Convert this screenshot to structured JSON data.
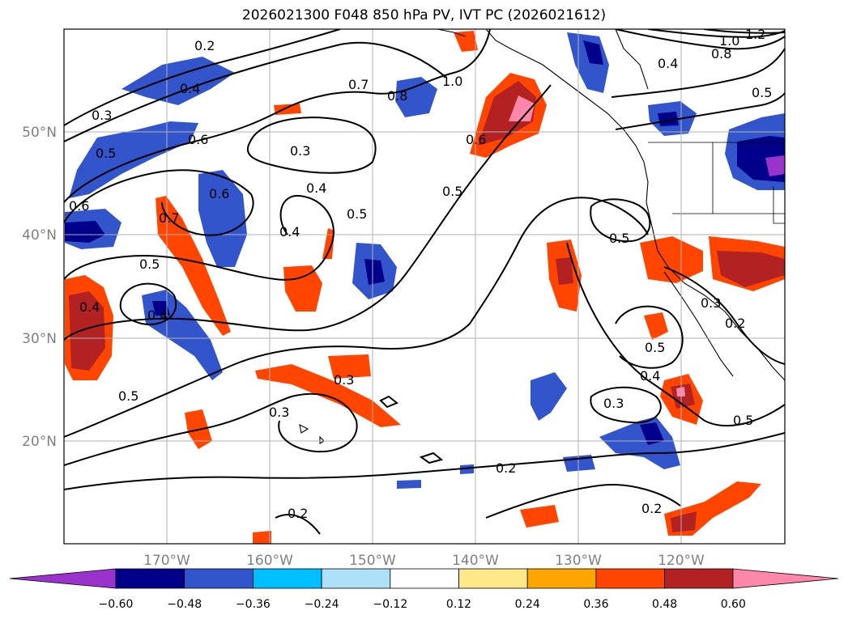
{
  "title": "2026021300 F048 850 hPa PV, IVT PC (2026021612)",
  "axes": {
    "lon_ticks": [
      "170°W",
      "160°W",
      "150°W",
      "140°W",
      "130°W",
      "120°W"
    ],
    "lat_ticks": [
      "50°N",
      "40°N",
      "30°N",
      "20°N"
    ]
  },
  "colorbar": {
    "ticks": [
      "−0.60",
      "−0.48",
      "−0.36",
      "−0.24",
      "−0.12",
      "0.12",
      "0.24",
      "0.36",
      "0.48",
      "0.60"
    ],
    "colors": [
      "#9933cc",
      "#00008b",
      "#3355cc",
      "#00bfff",
      "#aee0fa",
      "#ffffff",
      "#ffe88a",
      "#ffa500",
      "#ff4500",
      "#b22222",
      "#ff88aa"
    ]
  },
  "contour_labels": [
    "0.2",
    "0.3",
    "0.4",
    "0.5",
    "0.6",
    "0.7",
    "0.8",
    "1.0",
    "1.2"
  ],
  "map": {
    "lon_range": [
      -180,
      -110
    ],
    "lat_range": [
      10,
      60
    ],
    "gridlines": true,
    "shaded_field": "850 hPa PV",
    "contour_field": "IVT PC"
  }
}
